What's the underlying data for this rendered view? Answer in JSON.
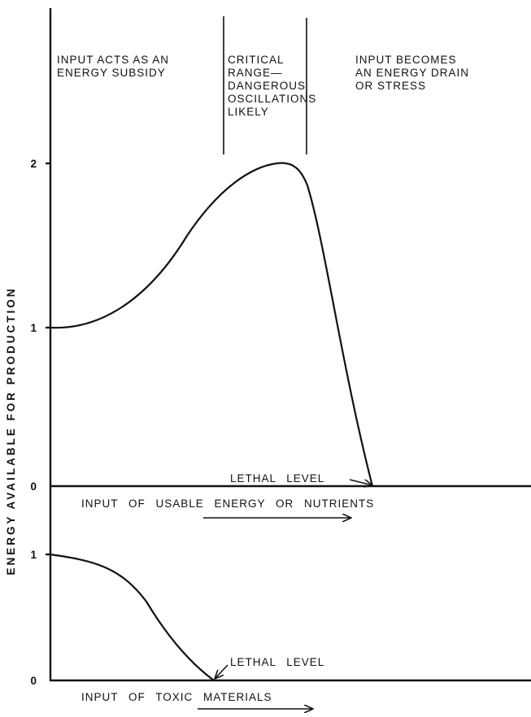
{
  "y_axis_label": "ENERGY AVAILABLE FOR PRODUCTION",
  "regions": [
    {
      "lines": [
        "INPUT ACTS AS AN",
        "ENERGY SUBSIDY"
      ]
    },
    {
      "lines": [
        "CRITICAL",
        "RANGE—",
        "DANGEROUS",
        "OSCILLATIONS",
        "LIKELY"
      ]
    },
    {
      "lines": [
        "INPUT BECOMES",
        "AN ENERGY DRAIN",
        "OR STRESS"
      ]
    }
  ],
  "top_panel": {
    "ticks": [
      "2",
      "1",
      "0"
    ],
    "lethal_label": "LETHAL LEVEL",
    "x_label": "INPUT OF USABLE ENERGY OR NUTRIENTS"
  },
  "bottom_panel": {
    "ticks": [
      "1",
      "0"
    ],
    "lethal_label": "LETHAL LEVEL",
    "x_label": "INPUT OF TOXIC MATERIALS"
  }
}
